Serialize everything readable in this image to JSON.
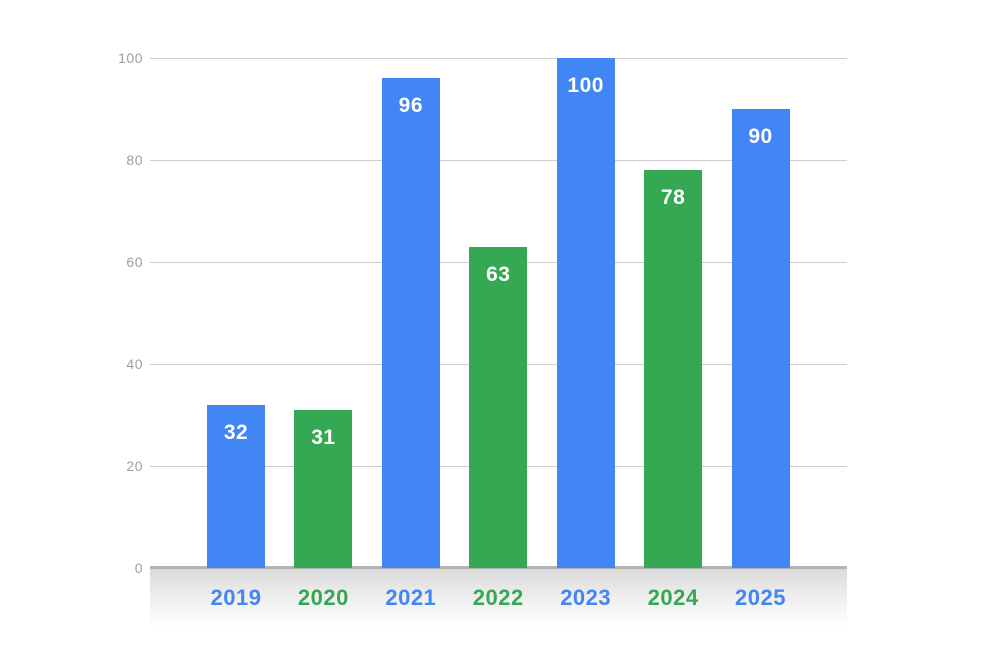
{
  "chart_data": {
    "type": "bar",
    "categories": [
      "2019",
      "2020",
      "2021",
      "2022",
      "2023",
      "2024",
      "2025"
    ],
    "values": [
      32,
      31,
      96,
      63,
      100,
      78,
      90
    ],
    "bar_colors": [
      "#4285F4",
      "#34A853",
      "#4285F4",
      "#34A853",
      "#4285F4",
      "#34A853",
      "#4285F4"
    ],
    "title": "",
    "xlabel": "",
    "ylabel": "",
    "ylim": [
      0,
      100
    ],
    "yticks": [
      0,
      20,
      40,
      60,
      80,
      100
    ],
    "grid": true,
    "legend": false,
    "value_label_position": "inside-top",
    "value_label_color": "#FFFFFF",
    "colors": {
      "blue_series": "#4285F4",
      "green_series": "#34A853",
      "gridline": "#CDCDCD",
      "axis_line": "#B3B3B3",
      "y_tick_text": "#9E9E9E",
      "background": "#FFFFFF"
    }
  }
}
